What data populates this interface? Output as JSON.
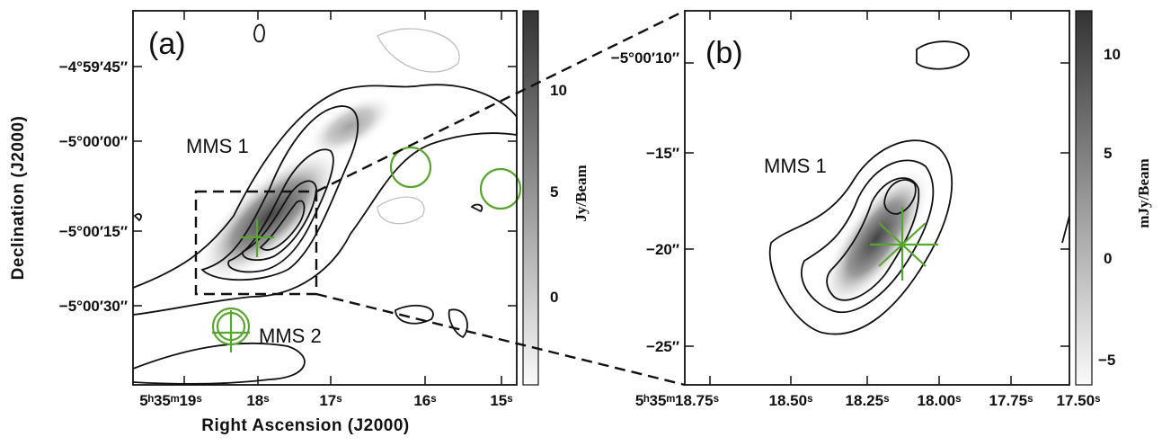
{
  "panels": [
    {
      "label": "(a)",
      "source_1": "MMS 1",
      "source_2": "MMS 2",
      "y_axis_title": "Declination (J2000)",
      "x_axis_title": "Right Ascension (J2000)",
      "y_tick_labels": [
        "−4°59′45″",
        "−5°00′00″",
        "−5°00′15″",
        "−5°00′30″"
      ],
      "x_tick_labels": [
        "5ʰ35ᵐ19ˢ",
        "18ˢ",
        "17ˢ",
        "16ˢ",
        "15ˢ"
      ],
      "colorbar_title": "Jy/Beam",
      "colorbar_tick_labels": [
        "10",
        "5",
        "0"
      ]
    },
    {
      "label": "(b)",
      "source_1": "MMS 1",
      "y_tick_labels": [
        "−5°00′10″",
        "−15″",
        "−20″",
        "−25″"
      ],
      "x_tick_labels": [
        "5ʰ35ᵐ18.75ˢ",
        "18.50ˢ",
        "18.25ˢ",
        "18.00ˢ",
        "17.75ˢ",
        "17.50ˢ"
      ],
      "colorbar_title": "mJy/Beam",
      "colorbar_tick_labels": [
        "10",
        "5",
        "0",
        "−5"
      ]
    }
  ]
}
